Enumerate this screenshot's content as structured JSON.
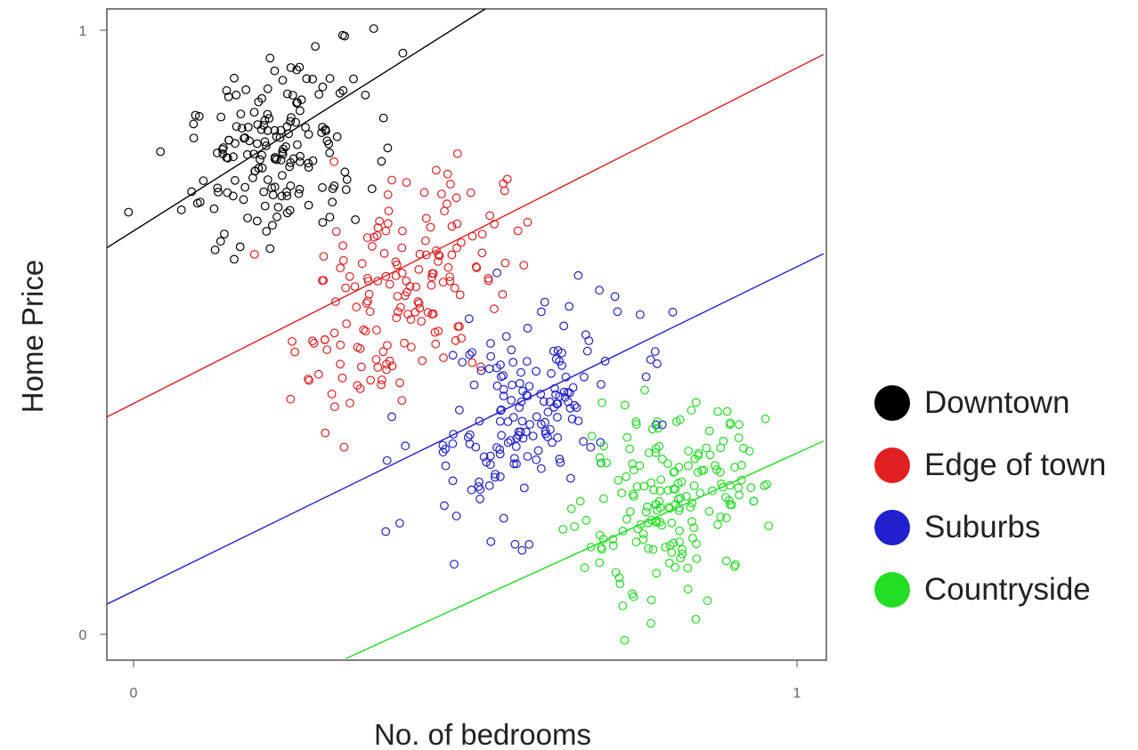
{
  "chart_data": {
    "type": "scatter",
    "title": "",
    "xlabel": "No. of bedrooms",
    "ylabel": "Home Price",
    "xlim": [
      -0.04,
      1.04
    ],
    "ylim": [
      -0.04,
      1.04
    ],
    "x_ticks": [
      "0",
      "1"
    ],
    "y_ticks": [
      "0",
      "1"
    ],
    "grid": false,
    "legend_position": "right",
    "marker": "open-circle",
    "series": [
      {
        "name": "Downtown",
        "color": "#000000",
        "center": [
          0.22,
          0.8
        ],
        "spread": [
          0.07,
          0.08
        ],
        "count": 170,
        "fit_line": {
          "x0": -0.04,
          "y0": 0.64,
          "x1": 0.58,
          "y1": 1.07
        }
      },
      {
        "name": "Edge of town",
        "color": "#e02020",
        "center": [
          0.4,
          0.57
        ],
        "spread": [
          0.08,
          0.1
        ],
        "count": 170,
        "fit_line": {
          "x0": -0.04,
          "y0": 0.36,
          "x1": 1.04,
          "y1": 0.96
        }
      },
      {
        "name": "Suburbs",
        "color": "#2020cc",
        "center": [
          0.58,
          0.36
        ],
        "spread": [
          0.08,
          0.09
        ],
        "count": 170,
        "fit_line": {
          "x0": -0.04,
          "y0": 0.05,
          "x1": 1.04,
          "y1": 0.63
        }
      },
      {
        "name": "Countryside",
        "color": "#22dd22",
        "center": [
          0.81,
          0.21
        ],
        "spread": [
          0.07,
          0.08
        ],
        "count": 180,
        "fit_line": {
          "x0": 0.32,
          "y0": -0.04,
          "x1": 1.04,
          "y1": 0.32
        }
      }
    ]
  }
}
